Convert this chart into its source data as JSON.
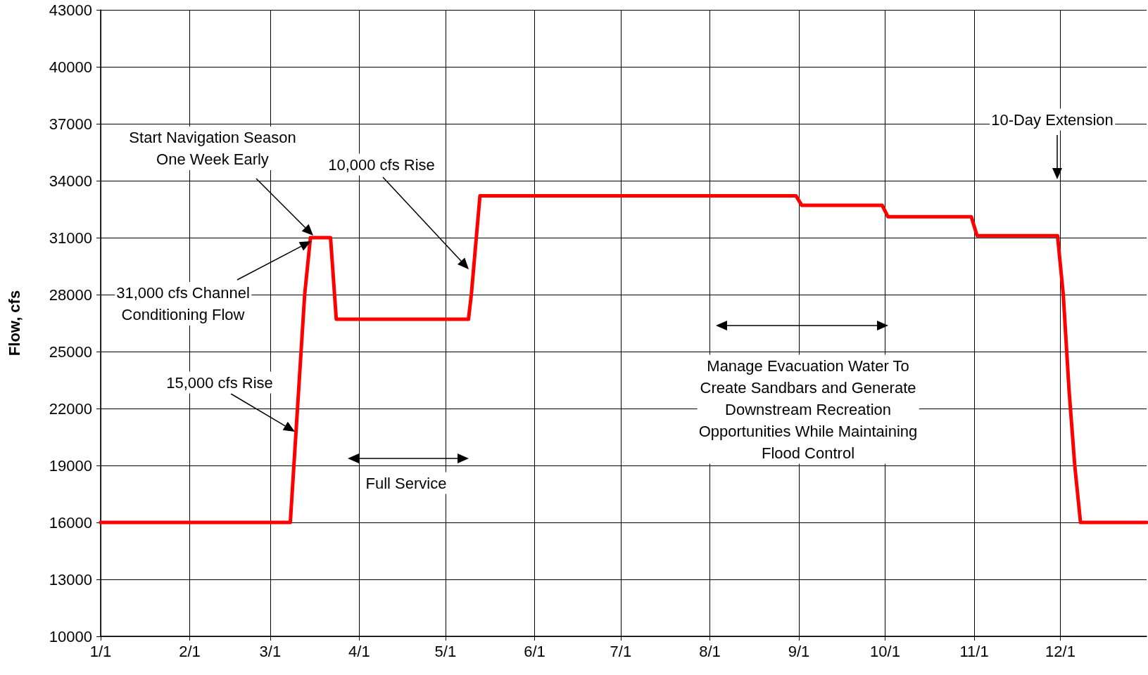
{
  "chart_data": {
    "type": "line",
    "ylabel": "Flow, cfs",
    "x": [
      "--01-01",
      "--03-08",
      "--03-13",
      "--03-15",
      "--03-22",
      "--03-24",
      "--05-09",
      "--05-10",
      "--05-13",
      "--08-31",
      "--09-02",
      "--09-30",
      "--10-02",
      "--10-31",
      "--11-02",
      "--11-30",
      "--12-02",
      "--12-04",
      "--12-06",
      "--12-08",
      "--12-31"
    ],
    "series": [
      {
        "color": "#ff0000",
        "values": [
          16000,
          16000,
          28000,
          31000,
          31000,
          26700,
          26700,
          28000,
          33200,
          33200,
          32700,
          32700,
          32100,
          32100,
          31100,
          31100,
          28000,
          23000,
          19000,
          16000,
          16000
        ]
      }
    ],
    "xlim": [
      "--01-01",
      "--12-31"
    ],
    "xticks": [
      {
        "value": "--01-01",
        "label": "1/1"
      },
      {
        "value": "--02-01",
        "label": "2/1"
      },
      {
        "value": "--03-01",
        "label": "3/1"
      },
      {
        "value": "--04-01",
        "label": "4/1"
      },
      {
        "value": "--05-01",
        "label": "5/1"
      },
      {
        "value": "--06-01",
        "label": "6/1"
      },
      {
        "value": "--07-01",
        "label": "7/1"
      },
      {
        "value": "--08-01",
        "label": "8/1"
      },
      {
        "value": "--09-01",
        "label": "9/1"
      },
      {
        "value": "--10-01",
        "label": "10/1"
      },
      {
        "value": "--11-01",
        "label": "11/1"
      },
      {
        "value": "--12-01",
        "label": "12/1"
      }
    ],
    "ylim": [
      10000,
      43000
    ],
    "yticks": [
      10000,
      13000,
      16000,
      19000,
      22000,
      25000,
      28000,
      31000,
      34000,
      37000,
      40000,
      43000
    ],
    "grid": true,
    "marker": "none",
    "line_style": "solid",
    "annotations": [
      "Start Navigation Season\nOne Week Early",
      "31,000 cfs Channel\nConditioning Flow",
      "15,000 cfs Rise",
      "10,000 cfs Rise",
      "Full Service",
      "Manage Evacuation Water To\nCreate Sandbars and Generate\nDownstream Recreation\nOpportunities While Maintaining\nFlood Control",
      "10-Day Extension"
    ]
  }
}
